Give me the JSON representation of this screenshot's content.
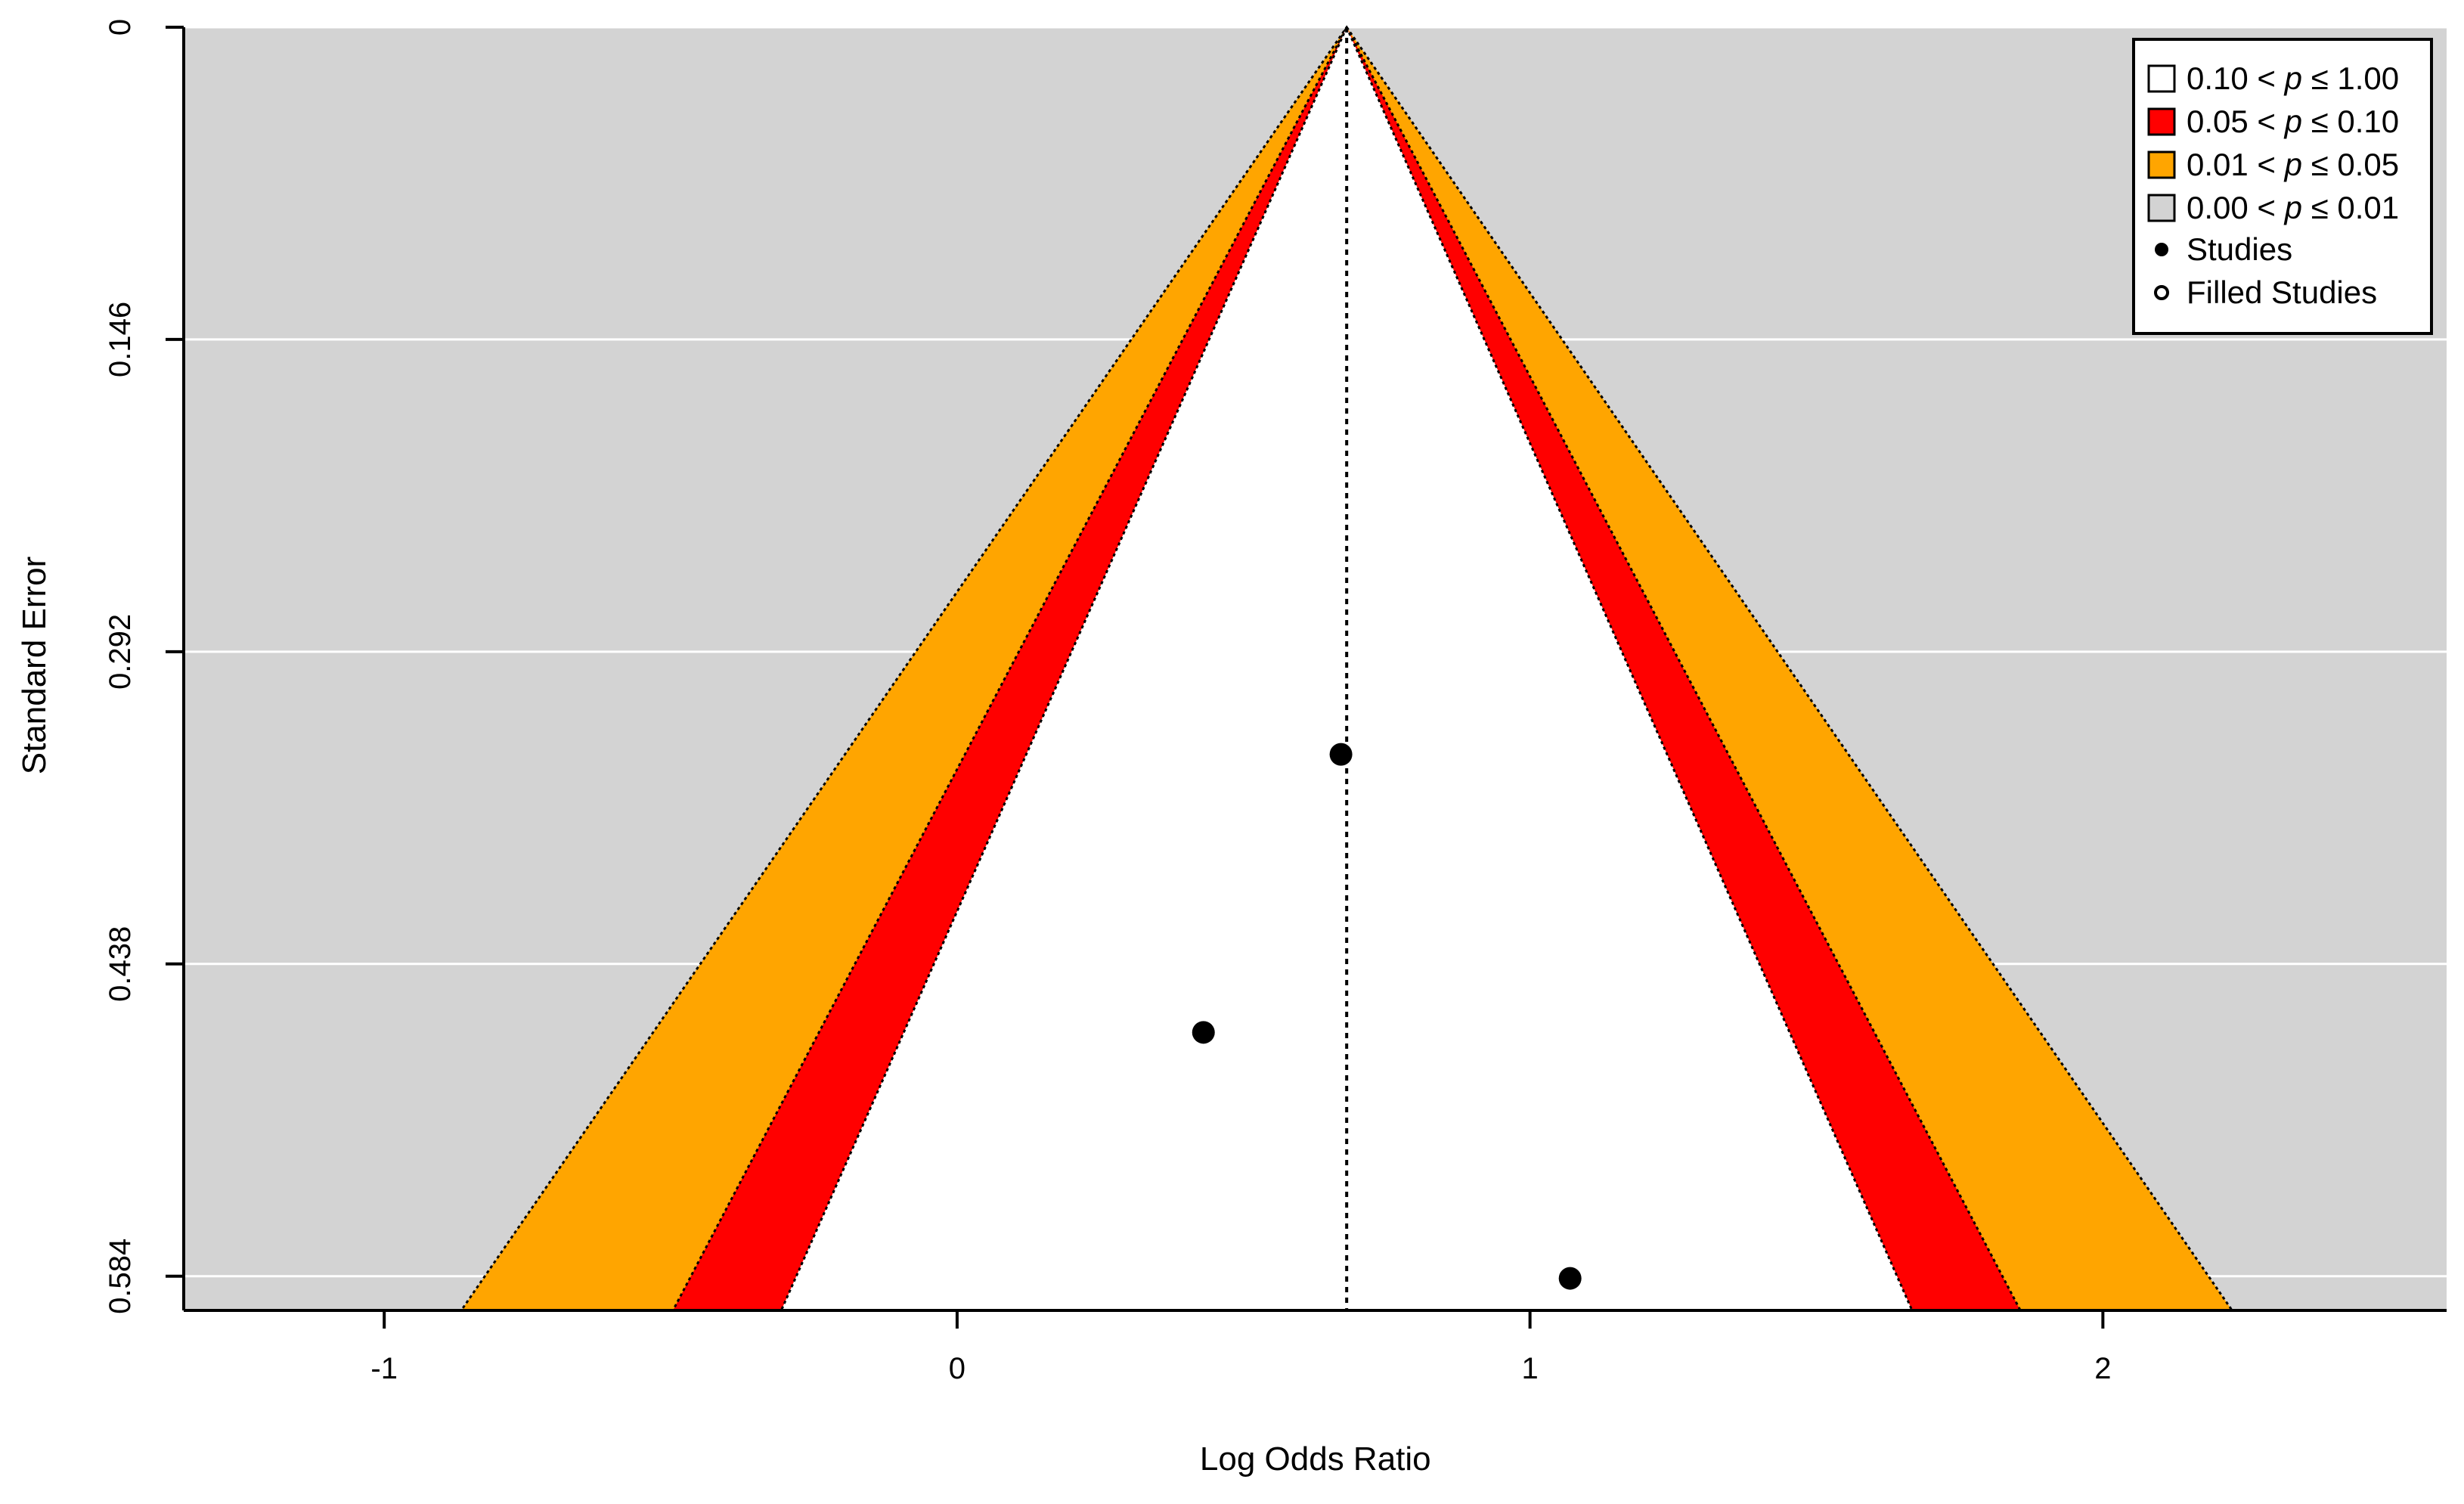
{
  "chart_data": {
    "type": "scatter",
    "subtype": "contour-enhanced funnel plot",
    "xlabel": "Log Odds Ratio",
    "ylabel": "Standard Error",
    "xlim": [
      -1.35,
      2.6
    ],
    "ylim": [
      0,
      0.6
    ],
    "y_reversed": true,
    "x_ticks": [
      -1,
      0,
      1,
      2
    ],
    "x_tick_labels": [
      "-1",
      "0",
      "1",
      "2"
    ],
    "y_ticks": [
      0,
      0.146,
      0.292,
      0.438,
      0.584
    ],
    "y_tick_labels": [
      "0",
      "0.146",
      "0.292",
      "0.438",
      "0.584"
    ],
    "grid": true,
    "grid_axis": "y",
    "center": 0.68,
    "reference_line": {
      "x": 0.68,
      "style": "dotted"
    },
    "contour_width_factors": [
      1.645,
      1.96,
      2.576
    ],
    "contour_colors": [
      "#ffffff",
      "#ff0000",
      "#ffa500",
      "#d3d3d3"
    ],
    "series": [
      {
        "name": "Studies",
        "points": [
          {
            "x": 0.67,
            "y": 0.34
          },
          {
            "x": 0.43,
            "y": 0.47
          },
          {
            "x": 1.07,
            "y": 0.585
          }
        ]
      }
    ],
    "legend": {
      "position": "top-right",
      "entries": [
        {
          "swatch": "#ffffff",
          "lo": "0.10",
          "hi": "1.00"
        },
        {
          "swatch": "#ff0000",
          "lo": "0.05",
          "hi": "0.10"
        },
        {
          "swatch": "#ffa500",
          "lo": "0.01",
          "hi": "0.05"
        },
        {
          "swatch": "#d3d3d3",
          "lo": "0.00",
          "hi": "0.01"
        }
      ],
      "p_symbol": "p",
      "less_symbol": "<",
      "leq_symbol": "≤",
      "studies_label": "Studies",
      "filled_label": "Filled Studies"
    }
  }
}
